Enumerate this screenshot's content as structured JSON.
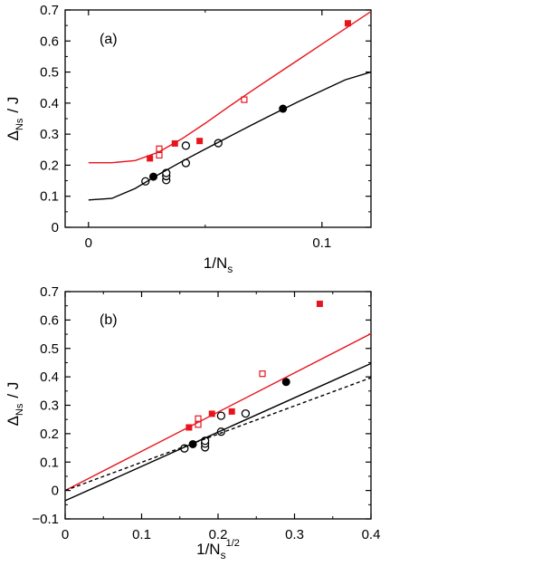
{
  "colors": {
    "red": "#e8141c",
    "black": "#000000"
  },
  "chart_data": [
    {
      "type": "scatter",
      "panel_label": "(a)",
      "xlabel": "1/N",
      "xlabel_sub": "s",
      "ylabel_main": "Δ",
      "ylabel_sub": "Ns",
      "ylabel_tail": "/ J",
      "xlim": [
        -0.01,
        0.121
      ],
      "ylim": [
        0,
        0.7
      ],
      "xticks": [
        0,
        0.1
      ],
      "xtick_labels": [
        "0",
        "0.1"
      ],
      "yticks": [
        0,
        0.1,
        0.2,
        0.3,
        0.4,
        0.5,
        0.6,
        0.7
      ],
      "ytick_labels": [
        "0",
        "0.1",
        "0.2",
        "0.3",
        "0.4",
        "0.5",
        "0.6",
        "0.7"
      ],
      "series": [
        {
          "marker": "filled-square",
          "color": "#e8141c",
          "x": [
            0.0263,
            0.037,
            0.0476,
            0.1111
          ],
          "y": [
            0.222,
            0.27,
            0.278,
            0.657
          ]
        },
        {
          "marker": "open-square",
          "color": "#e8141c",
          "x": [
            0.0303,
            0.0303,
            0.0667
          ],
          "y": [
            0.232,
            0.253,
            0.411
          ]
        },
        {
          "marker": "filled-circle",
          "color": "#000000",
          "x": [
            0.0278,
            0.0833
          ],
          "y": [
            0.163,
            0.382
          ]
        },
        {
          "marker": "open-circle",
          "color": "#000000",
          "x": [
            0.0244,
            0.0333,
            0.0333,
            0.0333,
            0.0417,
            0.0417,
            0.0556
          ],
          "y": [
            0.148,
            0.152,
            0.165,
            0.175,
            0.207,
            0.263,
            0.271
          ]
        },
        {
          "marker": "line",
          "color": "#e8141c",
          "x": [
            0,
            0.01,
            0.02,
            0.03,
            0.04,
            0.05,
            0.06,
            0.07,
            0.08,
            0.09,
            0.1,
            0.11,
            0.121
          ],
          "y": [
            0.208,
            0.208,
            0.215,
            0.242,
            0.285,
            0.335,
            0.388,
            0.44,
            0.49,
            0.54,
            0.59,
            0.64,
            0.695
          ]
        },
        {
          "marker": "line",
          "color": "#000000",
          "x": [
            0,
            0.01,
            0.02,
            0.03,
            0.04,
            0.05,
            0.06,
            0.07,
            0.08,
            0.09,
            0.1,
            0.11,
            0.121
          ],
          "y": [
            0.088,
            0.093,
            0.125,
            0.17,
            0.212,
            0.252,
            0.291,
            0.33,
            0.368,
            0.405,
            0.44,
            0.475,
            0.5
          ]
        }
      ]
    },
    {
      "type": "scatter",
      "panel_label": "(b)",
      "xlabel": "1/N",
      "xlabel_sub": "s",
      "xlabel_sup": "1/2",
      "ylabel_main": "Δ",
      "ylabel_sub": "Ns",
      "ylabel_tail": "/ J",
      "xlim": [
        0,
        0.4
      ],
      "ylim": [
        -0.1,
        0.7
      ],
      "xticks": [
        0,
        0.1,
        0.2,
        0.3,
        0.4
      ],
      "xtick_labels": [
        "0",
        "0.1",
        "0.2",
        "0.3",
        "0.4"
      ],
      "yticks": [
        -0.1,
        0,
        0.1,
        0.2,
        0.3,
        0.4,
        0.5,
        0.6,
        0.7
      ],
      "ytick_labels": [
        "−0.1",
        "0",
        "0.1",
        "0.2",
        "0.3",
        "0.4",
        "0.5",
        "0.6",
        "0.7"
      ],
      "series": [
        {
          "marker": "filled-square",
          "color": "#e8141c",
          "x": [
            0.162,
            0.192,
            0.218,
            0.333
          ],
          "y": [
            0.222,
            0.27,
            0.278,
            0.657
          ]
        },
        {
          "marker": "open-square",
          "color": "#e8141c",
          "x": [
            0.174,
            0.174,
            0.258
          ],
          "y": [
            0.232,
            0.253,
            0.411
          ]
        },
        {
          "marker": "filled-circle",
          "color": "#000000",
          "x": [
            0.167,
            0.289
          ],
          "y": [
            0.163,
            0.382
          ]
        },
        {
          "marker": "open-circle",
          "color": "#000000",
          "x": [
            0.156,
            0.183,
            0.183,
            0.183,
            0.204,
            0.204,
            0.236
          ],
          "y": [
            0.148,
            0.152,
            0.165,
            0.175,
            0.207,
            0.263,
            0.271
          ]
        },
        {
          "marker": "line",
          "color": "#e8141c",
          "x": [
            0,
            0.4
          ],
          "y": [
            0.0,
            0.552
          ]
        },
        {
          "marker": "line",
          "color": "#000000",
          "x": [
            0,
            0.4
          ],
          "y": [
            -0.036,
            0.447
          ]
        },
        {
          "marker": "dashed-line",
          "color": "#000000",
          "x": [
            0,
            0.4
          ],
          "y": [
            0.0,
            0.397
          ]
        }
      ]
    }
  ]
}
